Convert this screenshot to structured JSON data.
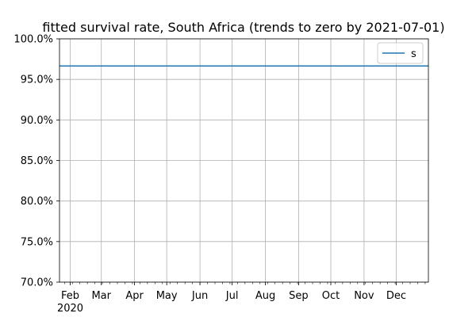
{
  "chart_data": {
    "type": "line",
    "title": "fitted survival rate, South Africa (trends to zero by 2021-07-01)",
    "xlabel": "",
    "ylabel": "",
    "x_axis": {
      "type": "date",
      "range": [
        "2020-01-22",
        "2020-12-31"
      ],
      "major_ticks": [
        {
          "date": "2020-02-01",
          "label": "Feb",
          "sublabel": "2020"
        },
        {
          "date": "2020-03-01",
          "label": "Mar"
        },
        {
          "date": "2020-04-01",
          "label": "Apr"
        },
        {
          "date": "2020-05-01",
          "label": "May"
        },
        {
          "date": "2020-06-01",
          "label": "Jun"
        },
        {
          "date": "2020-07-01",
          "label": "Jul"
        },
        {
          "date": "2020-08-01",
          "label": "Aug"
        },
        {
          "date": "2020-09-01",
          "label": "Sep"
        },
        {
          "date": "2020-10-01",
          "label": "Oct"
        },
        {
          "date": "2020-11-01",
          "label": "Nov"
        },
        {
          "date": "2020-12-01",
          "label": "Dec"
        }
      ],
      "minor_ticks": "weekly (Mondays)"
    },
    "y_axis": {
      "range": [
        0.7,
        1.0
      ],
      "ticks": [
        {
          "value": 0.7,
          "label": "70.0%"
        },
        {
          "value": 0.75,
          "label": "75.0%"
        },
        {
          "value": 0.8,
          "label": "80.0%"
        },
        {
          "value": 0.85,
          "label": "85.0%"
        },
        {
          "value": 0.9,
          "label": "90.0%"
        },
        {
          "value": 0.95,
          "label": "95.0%"
        },
        {
          "value": 1.0,
          "label": "100.0%"
        }
      ]
    },
    "grid": true,
    "legend": {
      "position": "top-right",
      "entries": [
        "s"
      ]
    },
    "series": [
      {
        "name": "s",
        "color": "#1f77b4",
        "x": [
          "2020-01-22",
          "2020-12-31"
        ],
        "values": [
          0.9665,
          0.9665
        ]
      }
    ]
  }
}
